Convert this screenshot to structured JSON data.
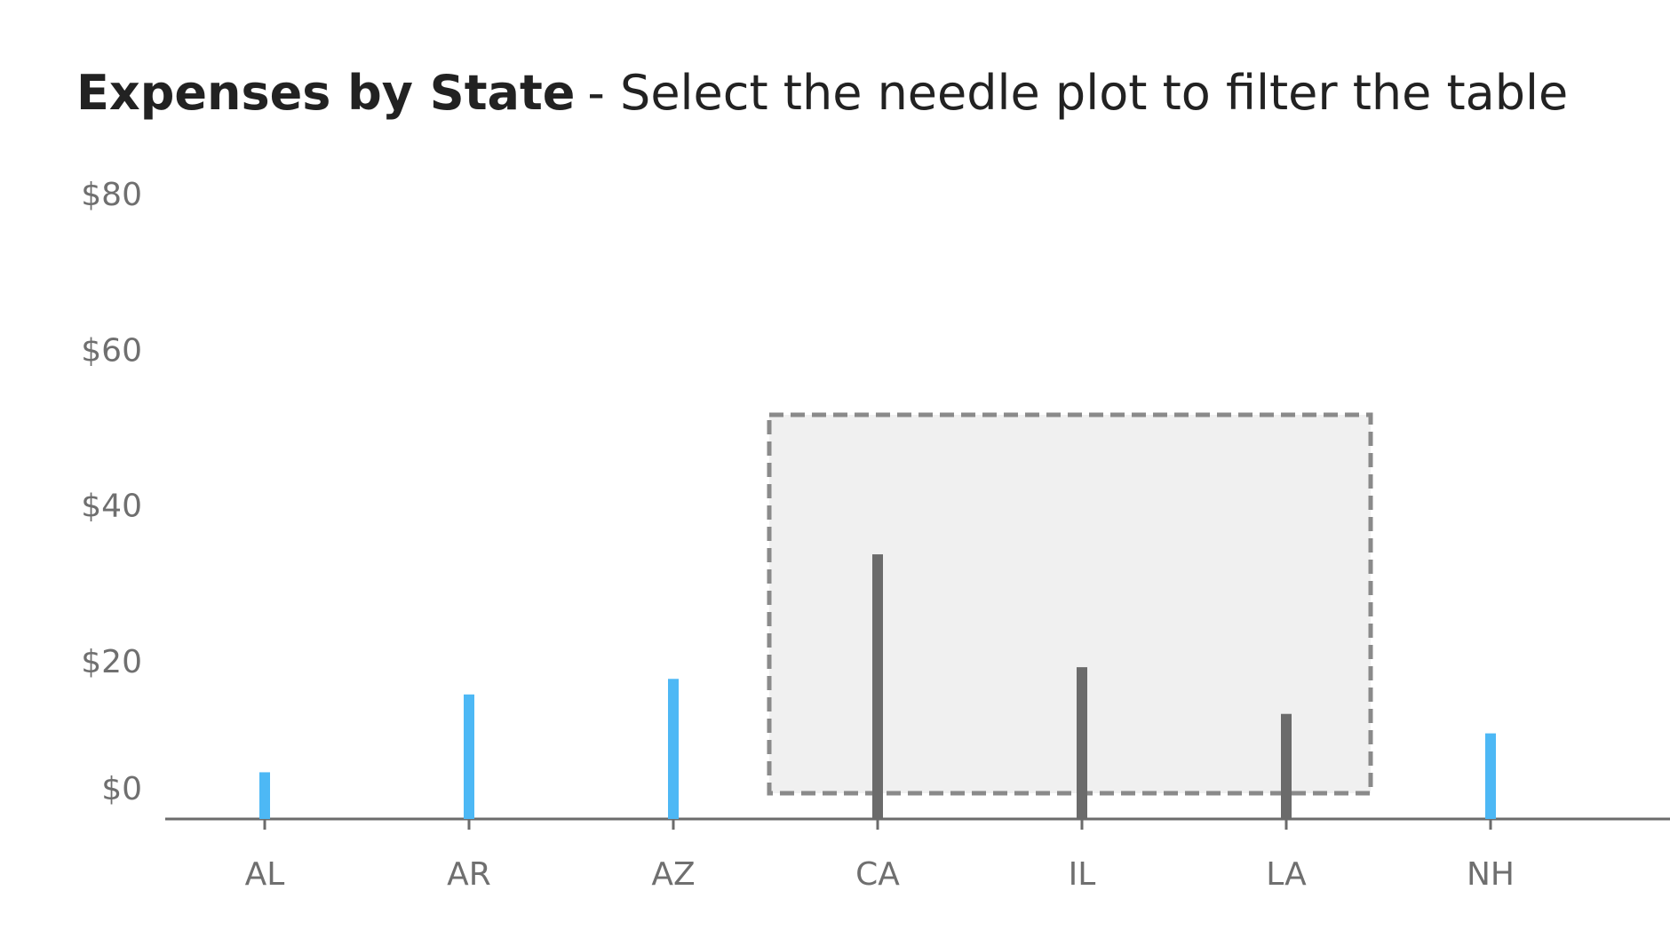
{
  "chart_data": {
    "type": "needle",
    "title": "Expenses by State",
    "subtitle": "- Select the needle plot to filter the table",
    "categories": [
      "AL",
      "AR",
      "AZ",
      "CA",
      "IL",
      "LA",
      "NH"
    ],
    "values": [
      6,
      16,
      18,
      34,
      19.5,
      13.5,
      11
    ],
    "selected": [
      false,
      false,
      false,
      true,
      true,
      true,
      false
    ],
    "color": "#4db8f5",
    "selected_color": "#6b6b6b",
    "ylim": [
      0,
      80
    ],
    "yticks": [
      {
        "value": 0,
        "label": "$0"
      },
      {
        "value": 20,
        "label": "$20"
      },
      {
        "value": 40,
        "label": "$40"
      },
      {
        "value": 60,
        "label": "$60"
      },
      {
        "value": 80,
        "label": "$80"
      }
    ],
    "grid": false
  }
}
